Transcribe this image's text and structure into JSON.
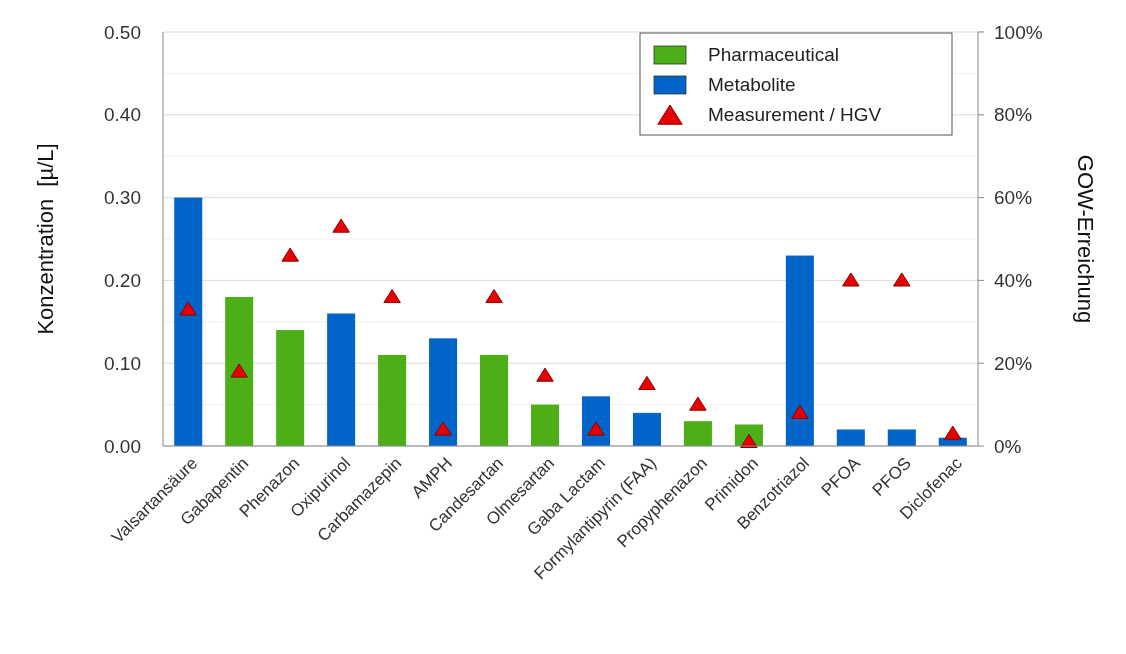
{
  "chart_data": {
    "type": "bar",
    "stacked": true,
    "ylabel": "Konzentration  [µ/L]",
    "y2label": "GOW-Erreichung",
    "categories": [
      "Valsartansäure",
      "Gabapentin",
      "Phenazon",
      "Oxipurinol",
      "Carbamazepin",
      "AMPH",
      "Candesartan",
      "Olmesartan",
      "Gaba Lactam",
      "Formylantipyrin (FAA)",
      "Propyphenazon",
      "Primidon",
      "Benzotriazol",
      "PFOA",
      "PFOS",
      "Diclofenac"
    ],
    "series": [
      {
        "name": "Pharmaceutical",
        "color": "#4caf17",
        "values": [
          null,
          0.18,
          0.14,
          null,
          0.11,
          null,
          0.11,
          0.05,
          null,
          null,
          0.03,
          0.026,
          null,
          null,
          null,
          null
        ]
      },
      {
        "name": "Metabolite",
        "color": "#0064c8",
        "values": [
          0.3,
          null,
          null,
          0.16,
          null,
          0.13,
          null,
          null,
          0.06,
          0.04,
          null,
          null,
          0.23,
          0.02,
          0.02,
          0.01
        ]
      },
      {
        "name": "Measurement / HGV",
        "type": "scatter",
        "axis": "y2",
        "marker": "triangle",
        "color": "#e60000",
        "x": [
          "Valsartansäure",
          "Gabapentin",
          "Phenazon",
          "Oxipurinol",
          "Carbamazepin",
          "AMPH",
          "Candesartan",
          "Olmesartan",
          "Gaba Lactam",
          "Formylantipyrin (FAA)",
          "Propyphenazon",
          "Primidon",
          "Benzotriazol",
          "PFOA",
          "PFOS",
          "Diclofenac"
        ],
        "values": [
          33,
          18,
          46,
          53,
          36,
          4,
          36,
          17,
          4,
          15,
          10,
          1,
          8,
          40,
          40,
          3
        ]
      }
    ],
    "ylim": [
      0,
      0.5
    ],
    "yticks": [
      {
        "value": 0,
        "label": "0.00"
      },
      {
        "value": 0.1,
        "label": "0.10"
      },
      {
        "value": 0.2,
        "label": "0.20"
      },
      {
        "value": 0.3,
        "label": "0.30"
      },
      {
        "value": 0.4,
        "label": "0.40"
      },
      {
        "value": 0.5,
        "label": "0.50"
      }
    ],
    "y2lim": [
      0,
      100
    ],
    "y2ticks": [
      {
        "value": 0,
        "label": "0%"
      },
      {
        "value": 20,
        "label": "20%"
      },
      {
        "value": 40,
        "label": "40%"
      },
      {
        "value": 60,
        "label": "60%"
      },
      {
        "value": 80,
        "label": "80%"
      },
      {
        "value": 100,
        "label": "100%"
      }
    ],
    "grid": "y",
    "legend": "top right"
  }
}
